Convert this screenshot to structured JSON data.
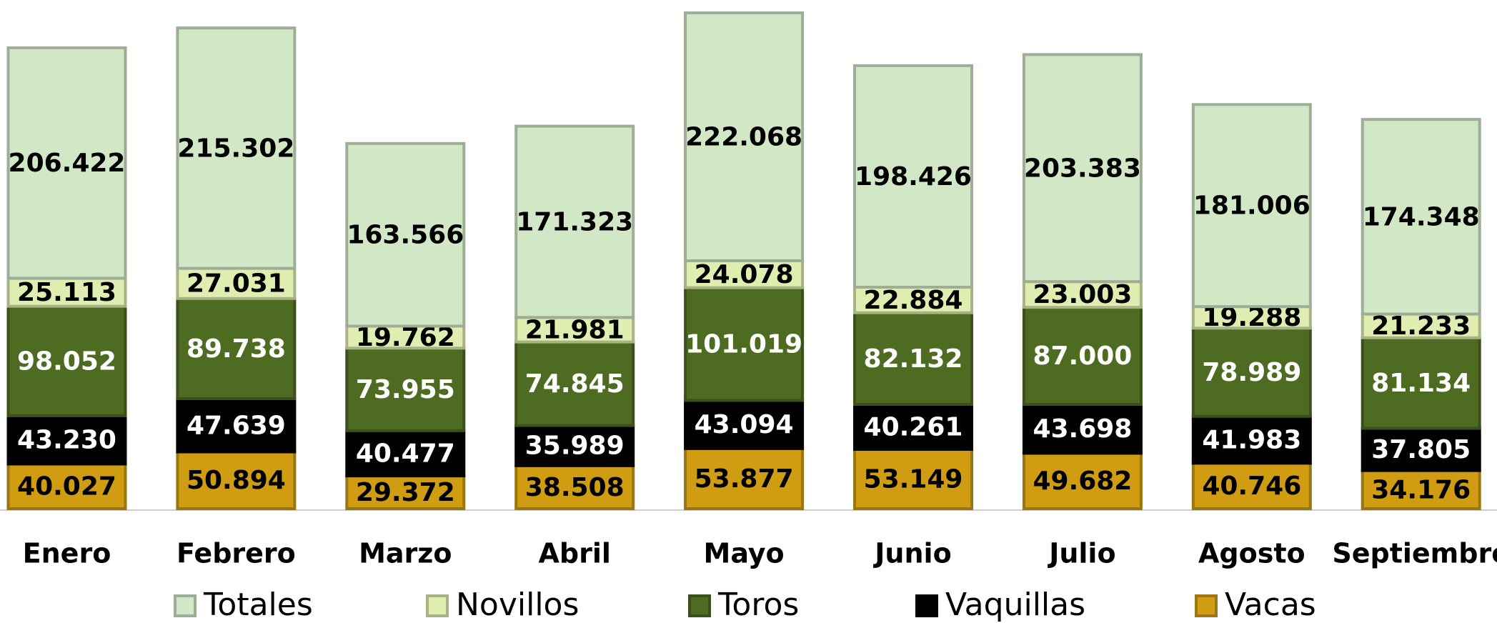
{
  "chart_data": {
    "type": "stacked_bar",
    "categories": [
      "Enero",
      "Febrero",
      "Marzo",
      "Abril",
      "Mayo",
      "Junio",
      "Julio",
      "Agosto",
      "Septiembre"
    ],
    "series": [
      {
        "name": "Totales",
        "color": "#d2e7c6",
        "values": [
          206422,
          215302,
          163566,
          171323,
          222068,
          198426,
          203383,
          181006,
          174348
        ],
        "value_labels": [
          "206.422",
          "215.302",
          "163.566",
          "171.323",
          "222.068",
          "198.426",
          "203.383",
          "181.006",
          "174.348"
        ]
      },
      {
        "name": "Novillos",
        "color": "#dfeeb0",
        "values": [
          25113,
          27031,
          19762,
          21981,
          24078,
          22884,
          23003,
          19288,
          21233
        ],
        "value_labels": [
          "25.113",
          "27.031",
          "19.762",
          "21.981",
          "24.078",
          "22.884",
          "23.003",
          "19.288",
          "21.233"
        ]
      },
      {
        "name": "Toros",
        "color": "#4e6b22",
        "values": [
          98052,
          89738,
          73955,
          74845,
          101019,
          82132,
          87000,
          78989,
          81134
        ],
        "value_labels": [
          "98.052",
          "89.738",
          "73.955",
          "74.845",
          "101.019",
          "82.132",
          "87.000",
          "78.989",
          "81.134"
        ]
      },
      {
        "name": "Vaquillas",
        "color": "#000000",
        "values": [
          43230,
          47639,
          40477,
          35989,
          43094,
          40261,
          43698,
          41983,
          37805
        ],
        "value_labels": [
          "43.230",
          "47.639",
          "40.477",
          "35.989",
          "43.094",
          "40.261",
          "43.698",
          "41.983",
          "37.805"
        ]
      },
      {
        "name": "Vacas",
        "color": "#cf9c12",
        "values": [
          40027,
          50894,
          29372,
          38508,
          53877,
          53149,
          49682,
          40746,
          34176
        ],
        "value_labels": [
          "40.027",
          "50.894",
          "29.372",
          "38.508",
          "53.877",
          "53.149",
          "49.682",
          "40.746",
          "34.176"
        ]
      }
    ]
  }
}
